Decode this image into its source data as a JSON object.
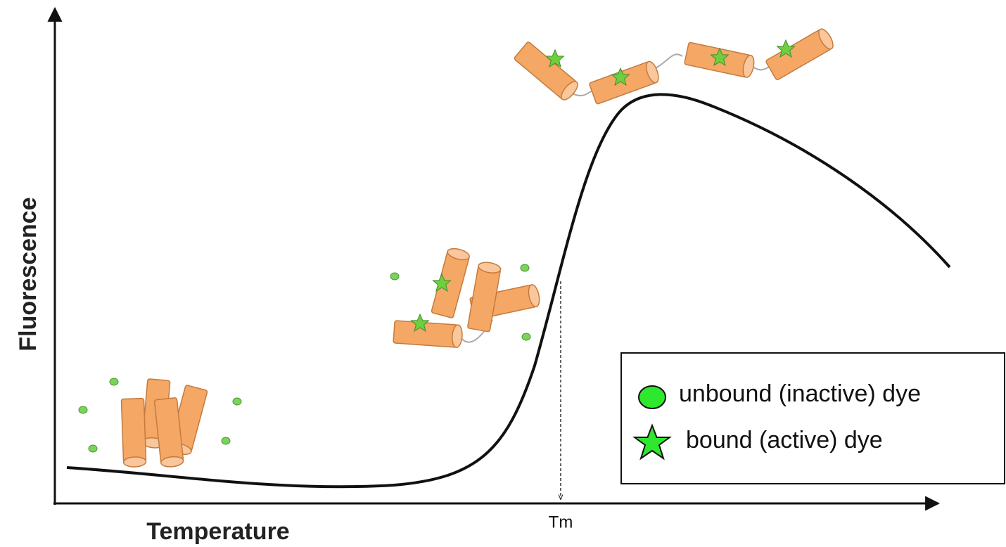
{
  "axes": {
    "y_label": "Fluorescence",
    "x_label": "Temperature",
    "marker": "Tm"
  },
  "legend": {
    "items": [
      {
        "label": "unbound (inactive) dye"
      },
      {
        "label": "bound (active) dye"
      }
    ]
  }
}
